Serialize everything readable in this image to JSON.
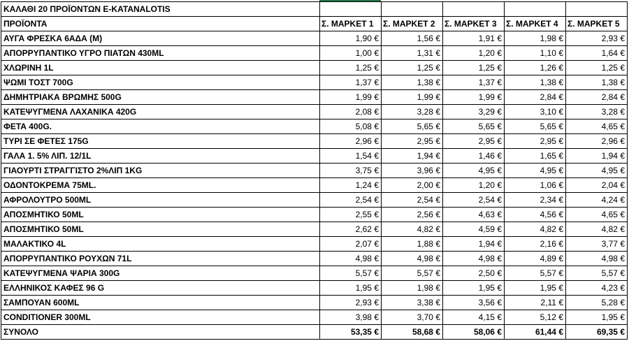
{
  "title": "ΚΑΛΑΘΙ 20 ΠΡΟΪΟΝΤΩΝ E-KATANALOTIS",
  "selection_color": "#217346",
  "header": {
    "product": "ΠΡΟΪΟΝΤΑ",
    "markets": [
      "Σ. ΜΑΡΚΕΤ 1",
      "Σ. ΜΑΡΚΕΤ 2",
      "Σ. ΜΑΡΚΕΤ 3",
      "Σ. ΜΑΡΚΕΤ 4",
      "Σ. ΜΑΡΚΕΤ 5"
    ]
  },
  "rows": [
    {
      "name": "ΑΥΓΑ ΦΡΕΣΚΑ 6ΑΔΑ (M)",
      "prices": [
        "1,90 €",
        "1,56 €",
        "1,91 €",
        "1,98 €",
        "2,93 €"
      ]
    },
    {
      "name": "ΑΠΟΡΡΥΠΑΝΤΙΚΟ ΥΓΡΟ ΠΙΑΤΩΝ 430ML",
      "prices": [
        "1,00 €",
        "1,31 €",
        "1,20 €",
        "1,10 €",
        "1,64 €"
      ]
    },
    {
      "name": "ΧΛΩΡΙΝΗ 1L",
      "prices": [
        "1,25 €",
        "1,25 €",
        "1,25 €",
        "1,26 €",
        "1,25 €"
      ]
    },
    {
      "name": "ΨΩΜΙ ΤΟΣΤ 700G",
      "prices": [
        "1,37 €",
        "1,38 €",
        "1,37 €",
        "1,38 €",
        "1,38 €"
      ]
    },
    {
      "name": "ΔΗΜΗΤΡΙΑΚΑ ΒΡΩΜΗΣ 500G",
      "prices": [
        "1,99 €",
        "1,99 €",
        "1,99 €",
        "2,84 €",
        "2,84 €"
      ]
    },
    {
      "name": "ΚΑΤΕΨΥΓΜΕΝΑ ΛΑΧΑΝΙΚΑ 420G",
      "prices": [
        "2,08 €",
        "3,28 €",
        "3,29 €",
        "3,10 €",
        "3,28 €"
      ]
    },
    {
      "name": "ΦΕΤΑ 400G.",
      "prices": [
        "5,08 €",
        "5,65 €",
        "5,65 €",
        "5,65 €",
        "4,65 €"
      ]
    },
    {
      "name": "ΤΥΡΙ ΣΕ ΦΕΤΕΣ 175G",
      "prices": [
        "2,96 €",
        "2,95 €",
        "2,95 €",
        "2,95 €",
        "2,96 €"
      ]
    },
    {
      "name": "ΓΑΛΑ 1. 5% ΛΙΠ. 12/1L",
      "prices": [
        "1,54 €",
        "1,94 €",
        "1,46 €",
        "1,65 €",
        "1,94 €"
      ]
    },
    {
      "name": "ΓΙΑΟΥΡΤΙ ΣΤΡΑΓΓΙΣΤΟ 2%ΛΙΠ 1KG",
      "prices": [
        "3,75 €",
        "3,96 €",
        "4,95 €",
        "4,95 €",
        "4,95 €"
      ]
    },
    {
      "name": "ΟΔΟΝΤΟΚΡΕΜΑ 75ML.",
      "prices": [
        "1,24 €",
        "2,00 €",
        "1,20 €",
        "1,06 €",
        "2,04 €"
      ]
    },
    {
      "name": "ΑΦΡΟΛΟΥΤΡΟ 500ML",
      "prices": [
        "2,54 €",
        "2,54 €",
        "2,54 €",
        "2,34 €",
        "4,24 €"
      ]
    },
    {
      "name": "ΑΠΟΣΜΗΤΙΚΟ 50ML",
      "prices": [
        "2,55 €",
        "2,56 €",
        "4,63 €",
        "4,56 €",
        "4,65 €"
      ]
    },
    {
      "name": "ΑΠΟΣΜΗΤΙΚΟ 50ML",
      "prices": [
        "2,62 €",
        "4,82 €",
        "4,59 €",
        "4,82 €",
        "4,82 €"
      ]
    },
    {
      "name": "ΜΑΛΑΚΤΙΚΟ 4L",
      "prices": [
        "2,07 €",
        "1,88 €",
        "1,94 €",
        "2,16 €",
        "3,77 €"
      ]
    },
    {
      "name": "ΑΠΟΡΡΥΠΑΝΤΙΚΟ ΡΟΥΧΩΝ 71L",
      "prices": [
        "4,98 €",
        "4,98 €",
        "4,98 €",
        "4,89 €",
        "4,98 €"
      ]
    },
    {
      "name": "ΚΑΤΕΨΥΓΜΕΝΑ ΨΑΡΙΑ 300G",
      "prices": [
        "5,57 €",
        "5,57 €",
        "2,50 €",
        "5,57 €",
        "5,57 €"
      ]
    },
    {
      "name": "ΕΛΛΗΝΙΚΟΣ ΚΑΦΕΣ 96 G",
      "prices": [
        "1,95 €",
        "1,98 €",
        "1,95 €",
        "1,95 €",
        "4,23 €"
      ]
    },
    {
      "name": "ΣΑΜΠΟΥΑΝ 600ML",
      "prices": [
        "2,93 €",
        "3,38 €",
        "3,56 €",
        "2,11 €",
        "5,28 €"
      ]
    },
    {
      "name": "CONDITIONER 300ML",
      "prices": [
        "3,98 €",
        "3,70 €",
        "4,15 €",
        "5,12 €",
        "1,95 €"
      ]
    }
  ],
  "total": {
    "name": "ΣΥΝΟΛΟ",
    "prices": [
      "53,35 €",
      "58,68 €",
      "58,06 €",
      "61,44 €",
      "69,35 €"
    ]
  }
}
